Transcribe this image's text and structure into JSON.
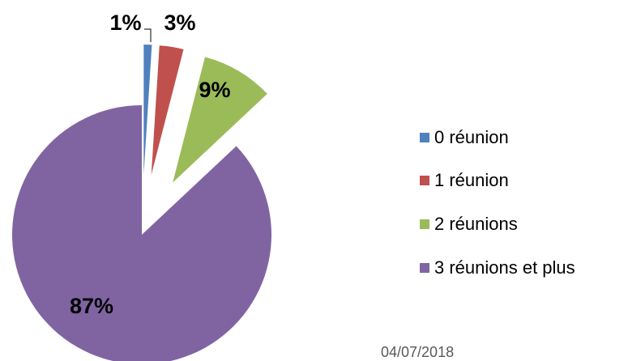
{
  "chart_data": {
    "type": "pie",
    "categories": [
      "0 réunion",
      "1 réunion",
      "2 réunions",
      "3 réunions et plus"
    ],
    "values": [
      1,
      3,
      9,
      87
    ],
    "value_labels": [
      "1%",
      "3%",
      "9%",
      "87%"
    ],
    "colors": [
      "#4f81bd",
      "#c0504d",
      "#9bbb59",
      "#8064a2"
    ]
  },
  "footer": {
    "date": "04/07/2018"
  }
}
